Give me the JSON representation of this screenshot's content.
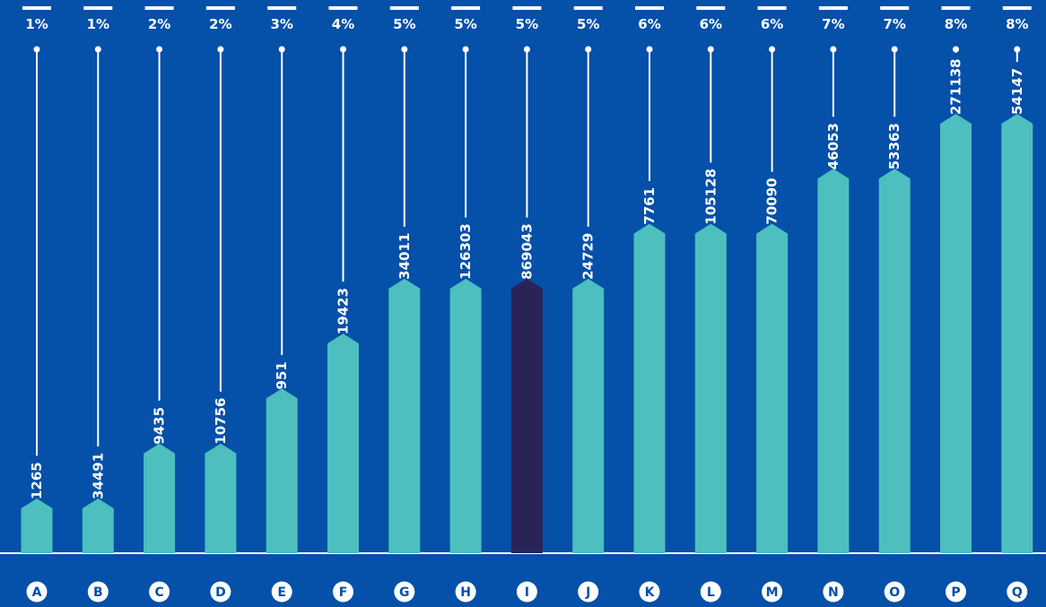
{
  "chart_data": {
    "type": "bar",
    "categories": [
      "A",
      "B",
      "C",
      "D",
      "E",
      "F",
      "G",
      "H",
      "I",
      "J",
      "K",
      "L",
      "M",
      "N",
      "O",
      "P",
      "Q"
    ],
    "percentages": [
      "1%",
      "1%",
      "2%",
      "2%",
      "3%",
      "4%",
      "5%",
      "5%",
      "5%",
      "5%",
      "6%",
      "6%",
      "6%",
      "7%",
      "7%",
      "8%",
      "8%"
    ],
    "series": [
      {
        "values": [
          1,
          1,
          2,
          2,
          3,
          4,
          5,
          5,
          5,
          5,
          6,
          6,
          6,
          7,
          7,
          8,
          8
        ]
      }
    ],
    "data_labels": [
      "1265",
      "34491",
      "9435",
      "10756",
      "951",
      "19423",
      "34011",
      "126303",
      "869043",
      "24729",
      "7761",
      "105128",
      "70090",
      "46053",
      "53363",
      "271138",
      "54147"
    ],
    "highlight_index": 8,
    "ylim": [
      0,
      8
    ],
    "grid": false,
    "colors": {
      "background": "#0550a8",
      "bar": "#4cbfbe",
      "bar_highlight": "#2a2358",
      "line": "#ffffff",
      "label_light": "#ffffff",
      "label_dark": "#2a2358",
      "badge": "#ffffff"
    }
  }
}
